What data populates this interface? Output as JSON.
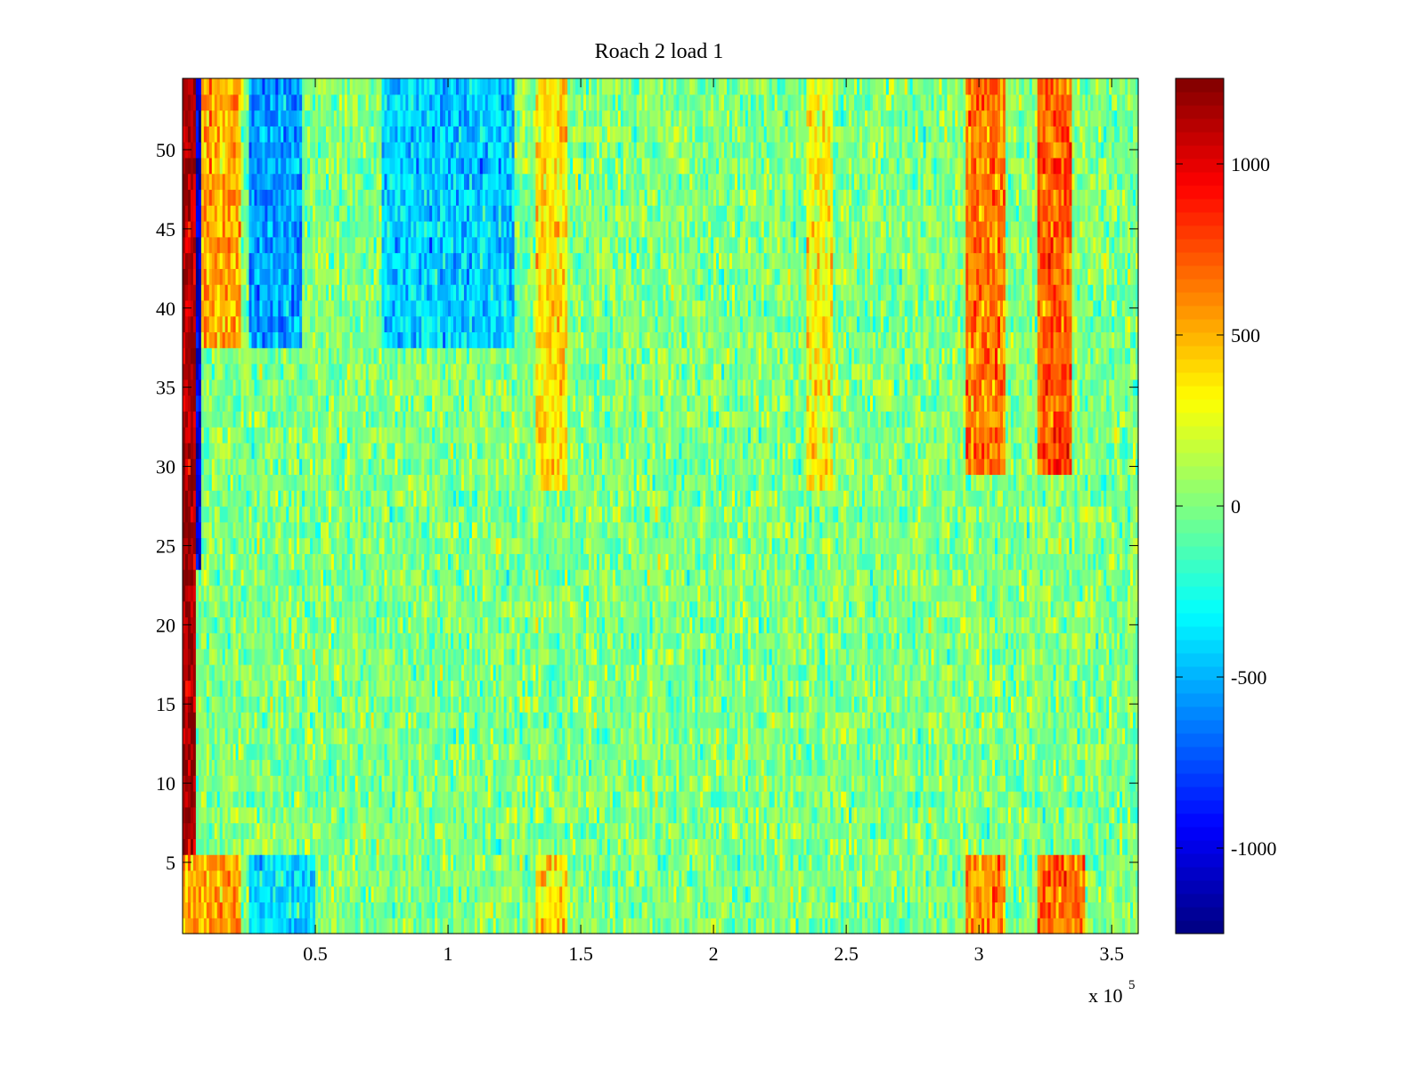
{
  "chart_data": {
    "type": "heatmap",
    "title": "Roach 2 load 1",
    "xlabel": "",
    "ylabel": "",
    "x_exponent_label": {
      "base": "x 10",
      "exponent": "5"
    },
    "xlim": [
      0,
      3.6
    ],
    "ylim": [
      0.5,
      54.5
    ],
    "x_ticks": [
      0.5,
      1,
      1.5,
      2,
      2.5,
      3,
      3.5
    ],
    "x_tick_labels": [
      "0.5",
      "1",
      "1.5",
      "2",
      "2.5",
      "3",
      "3.5"
    ],
    "y_ticks": [
      5,
      10,
      15,
      20,
      25,
      30,
      35,
      40,
      45,
      50
    ],
    "y_tick_labels": [
      "5",
      "10",
      "15",
      "20",
      "25",
      "30",
      "35",
      "40",
      "45",
      "50"
    ],
    "rows": 54,
    "colormap": "jet",
    "clim": [
      -1250,
      1250
    ],
    "colorbar_ticks": [
      -1000,
      -500,
      0,
      500,
      1000
    ],
    "colorbar_tick_labels": [
      "-1000",
      "-500",
      "0",
      "500",
      "1000"
    ],
    "grid": false,
    "description_bands": [
      {
        "x_range": [
          0.0,
          0.05
        ],
        "rows": [
          1,
          54
        ],
        "level": 1150
      },
      {
        "x_range": [
          0.05,
          0.07
        ],
        "rows": [
          24,
          54
        ],
        "level": -1050
      },
      {
        "x_range": [
          0.07,
          0.22
        ],
        "rows": [
          38,
          54
        ],
        "level": 520
      },
      {
        "x_range": [
          0.25,
          0.45
        ],
        "rows": [
          38,
          54
        ],
        "level": -560
      },
      {
        "x_range": [
          0.75,
          1.25
        ],
        "rows": [
          38,
          54
        ],
        "level": -430
      },
      {
        "x_range": [
          1.33,
          1.45
        ],
        "rows": [
          29,
          54
        ],
        "level": 380
      },
      {
        "x_range": [
          2.35,
          2.45
        ],
        "rows": [
          29,
          54
        ],
        "level": 330
      },
      {
        "x_range": [
          2.95,
          3.1
        ],
        "rows": [
          30,
          54
        ],
        "level": 620
      },
      {
        "x_range": [
          3.22,
          3.35
        ],
        "rows": [
          30,
          54
        ],
        "level": 720
      },
      {
        "x_range": [
          0.0,
          0.22
        ],
        "rows": [
          1,
          5
        ],
        "level": 520
      },
      {
        "x_range": [
          0.25,
          0.5
        ],
        "rows": [
          1,
          5
        ],
        "level": -380
      },
      {
        "x_range": [
          1.33,
          1.45
        ],
        "rows": [
          1,
          5
        ],
        "level": 350
      },
      {
        "x_range": [
          2.95,
          3.1
        ],
        "rows": [
          1,
          5
        ],
        "level": 580
      },
      {
        "x_range": [
          3.22,
          3.4
        ],
        "rows": [
          1,
          5
        ],
        "level": 680
      }
    ]
  }
}
